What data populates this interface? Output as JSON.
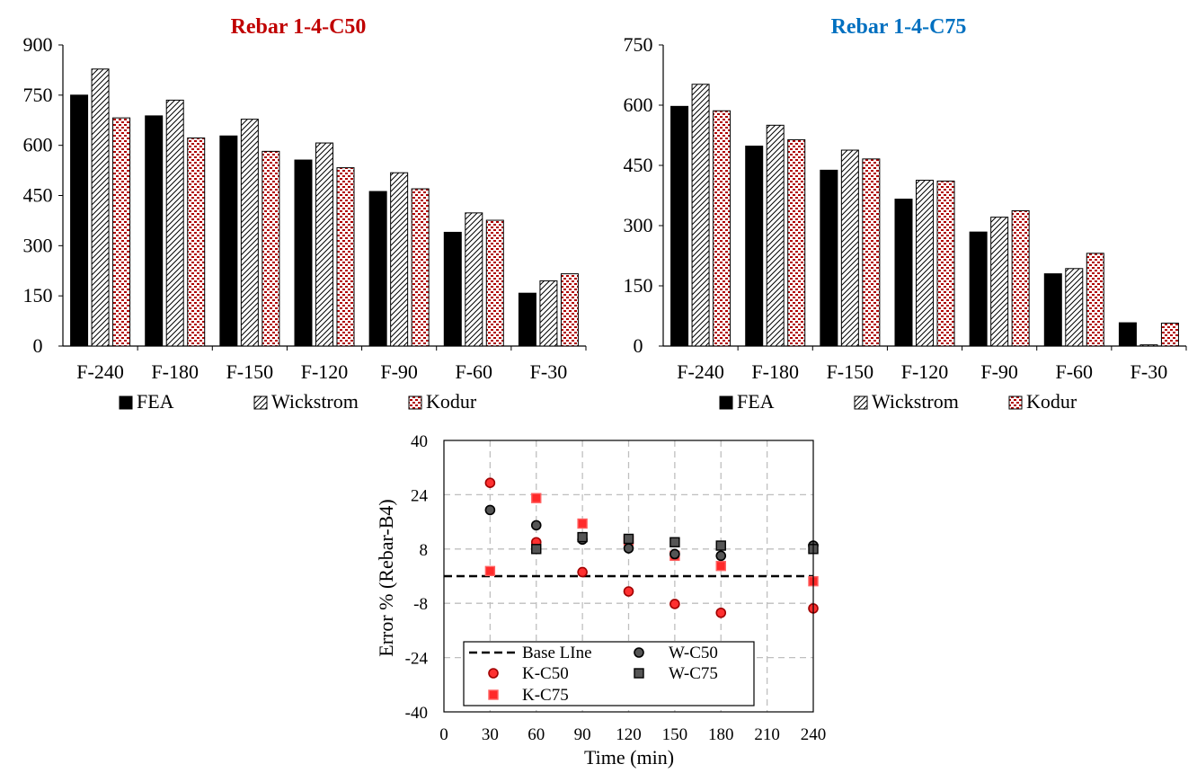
{
  "chart_data": [
    {
      "type": "bar",
      "title": "Rebar 1-4-C50",
      "title_color": "#c00000",
      "categories": [
        "F-240",
        "F-180",
        "F-150",
        "F-120",
        "F-90",
        "F-60",
        "F-30"
      ],
      "ylim": [
        0,
        900
      ],
      "yticks": [
        "0",
        "150",
        "300",
        "450",
        "600",
        "750",
        "900"
      ],
      "series": [
        {
          "name": "FEA",
          "pattern": "solid-black",
          "values": [
            750,
            688,
            628,
            556,
            462,
            340,
            158
          ]
        },
        {
          "name": "Wickstrom",
          "pattern": "diagonal-hatch",
          "values": [
            828,
            735,
            678,
            607,
            518,
            398,
            195
          ]
        },
        {
          "name": "Kodur",
          "pattern": "red-dots",
          "values": [
            682,
            622,
            582,
            533,
            470,
            376,
            216
          ]
        }
      ],
      "legend_position": "bottom"
    },
    {
      "type": "bar",
      "title": "Rebar 1-4-C75",
      "title_color": "#0070c0",
      "categories": [
        "F-240",
        "F-180",
        "F-150",
        "F-120",
        "F-90",
        "F-60",
        "F-30"
      ],
      "ylim": [
        0,
        750
      ],
      "yticks": [
        "0",
        "150",
        "300",
        "450",
        "600",
        "750"
      ],
      "series": [
        {
          "name": "FEA",
          "pattern": "solid-black",
          "values": [
            597,
            498,
            438,
            366,
            284,
            180,
            58
          ]
        },
        {
          "name": "Wickstrom",
          "pattern": "diagonal-hatch",
          "values": [
            652,
            550,
            488,
            413,
            321,
            193,
            3
          ]
        },
        {
          "name": "Kodur",
          "pattern": "red-dots",
          "values": [
            586,
            514,
            466,
            411,
            337,
            231,
            57
          ]
        }
      ],
      "legend_position": "bottom"
    },
    {
      "type": "scatter",
      "xlabel": "Time (min)",
      "ylabel": "Error % (Rebar-B4)",
      "xlim": [
        0,
        240
      ],
      "ylim": [
        -40,
        40
      ],
      "xticks": [
        "0",
        "30",
        "60",
        "90",
        "120",
        "150",
        "180",
        "210",
        "240"
      ],
      "yticks": [
        "-40",
        "-24",
        "-8",
        "8",
        "24",
        "40"
      ],
      "grid": true,
      "baseline": {
        "name": "Base LIne",
        "y": 0
      },
      "series": [
        {
          "name": "K-C50",
          "marker": "circle",
          "color": "#e02020",
          "points": [
            [
              30,
              27.5
            ],
            [
              60,
              10
            ],
            [
              90,
              1.2
            ],
            [
              120,
              -4.5
            ],
            [
              150,
              -8.2
            ],
            [
              180,
              -10.8
            ],
            [
              240,
              -9.5
            ]
          ]
        },
        {
          "name": "K-C75",
          "marker": "square",
          "color": "#ff2a2a",
          "points": [
            [
              30,
              1.5
            ],
            [
              60,
              23
            ],
            [
              90,
              15.5
            ],
            [
              120,
              10.5
            ],
            [
              150,
              6
            ],
            [
              180,
              3
            ],
            [
              240,
              -1.5
            ]
          ]
        },
        {
          "name": "W-C50",
          "marker": "circle",
          "color": "#404040",
          "points": [
            [
              30,
              19.5
            ],
            [
              60,
              15
            ],
            [
              90,
              10.8
            ],
            [
              120,
              8.2
            ],
            [
              150,
              6.5
            ],
            [
              180,
              6
            ],
            [
              240,
              9
            ]
          ]
        },
        {
          "name": "W-C75",
          "marker": "square",
          "color": "#404040",
          "points": [
            [
              60,
              8
            ],
            [
              90,
              11.5
            ],
            [
              120,
              11
            ],
            [
              150,
              10
            ],
            [
              180,
              9
            ],
            [
              240,
              8
            ]
          ]
        }
      ],
      "legend_position": "bottom-left"
    }
  ]
}
